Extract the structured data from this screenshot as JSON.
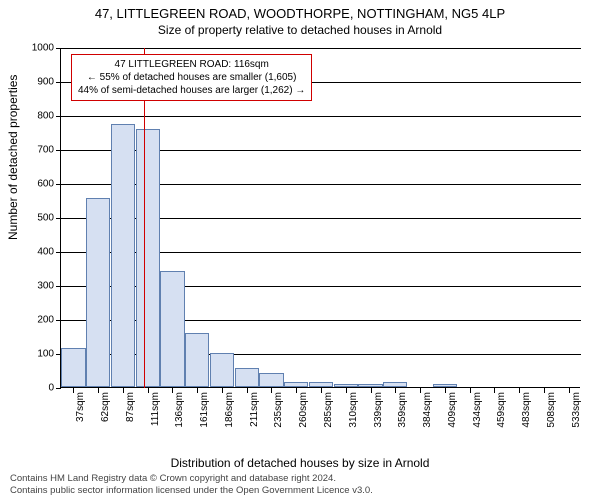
{
  "title_main": "47, LITTLEGREEN ROAD, WOODTHORPE, NOTTINGHAM, NG5 4LP",
  "title_sub": "Size of property relative to detached houses in Arnold",
  "y_axis_label": "Number of detached properties",
  "x_axis_label": "Distribution of detached houses by size in Arnold",
  "chart": {
    "type": "histogram",
    "ylim": [
      0,
      1000
    ],
    "ytick_step": 100,
    "bar_fill": "#d6e0f2",
    "bar_border": "#6080b0",
    "grid_color": "#000000",
    "marker_color": "#d00000",
    "marker_x_sqm": 116,
    "x_categories": [
      "37sqm",
      "62sqm",
      "87sqm",
      "111sqm",
      "136sqm",
      "161sqm",
      "186sqm",
      "211sqm",
      "235sqm",
      "260sqm",
      "285sqm",
      "310sqm",
      "339sqm",
      "359sqm",
      "384sqm",
      "409sqm",
      "434sqm",
      "459sqm",
      "483sqm",
      "508sqm",
      "533sqm"
    ],
    "bar_values": [
      115,
      555,
      775,
      760,
      340,
      160,
      100,
      55,
      40,
      15,
      15,
      10,
      10,
      15,
      0,
      10,
      0,
      0,
      0,
      0,
      0
    ]
  },
  "annotation": {
    "line1": "47 LITTLEGREEN ROAD: 116sqm",
    "line2": "← 55% of detached houses are smaller (1,605)",
    "line3": "44% of semi-detached houses are larger (1,262) →"
  },
  "footer_line1": "Contains HM Land Registry data © Crown copyright and database right 2024.",
  "footer_line2": "Contains public sector information licensed under the Open Government Licence v3.0."
}
